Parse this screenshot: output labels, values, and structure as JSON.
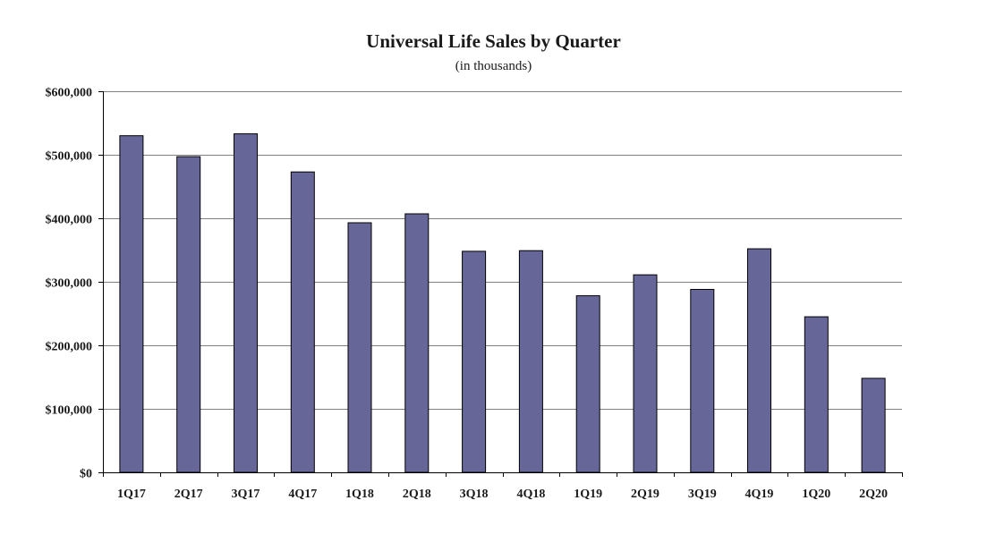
{
  "chart_data": {
    "type": "bar",
    "title": "Universal Life Sales by Quarter",
    "subtitle": "(in thousands)",
    "xlabel": "",
    "ylabel": "",
    "categories": [
      "1Q17",
      "2Q17",
      "3Q17",
      "4Q17",
      "1Q18",
      "2Q18",
      "3Q18",
      "4Q18",
      "1Q19",
      "2Q19",
      "3Q19",
      "4Q19",
      "1Q20",
      "2Q20"
    ],
    "values": [
      530000,
      497000,
      533000,
      473000,
      393000,
      407000,
      348000,
      349000,
      278000,
      311000,
      288000,
      352000,
      245000,
      148000
    ],
    "ylim": [
      0,
      600000
    ],
    "yticks": [
      0,
      100000,
      200000,
      300000,
      400000,
      500000,
      600000
    ],
    "ytick_labels": [
      "$0",
      "$100,000",
      "$200,000",
      "$300,000",
      "$400,000",
      "$500,000",
      "$600,000"
    ],
    "grid": true,
    "legend": "none",
    "colors": {
      "bar": "#666699",
      "bar_edge": "#000000",
      "grid": "#808080"
    }
  }
}
